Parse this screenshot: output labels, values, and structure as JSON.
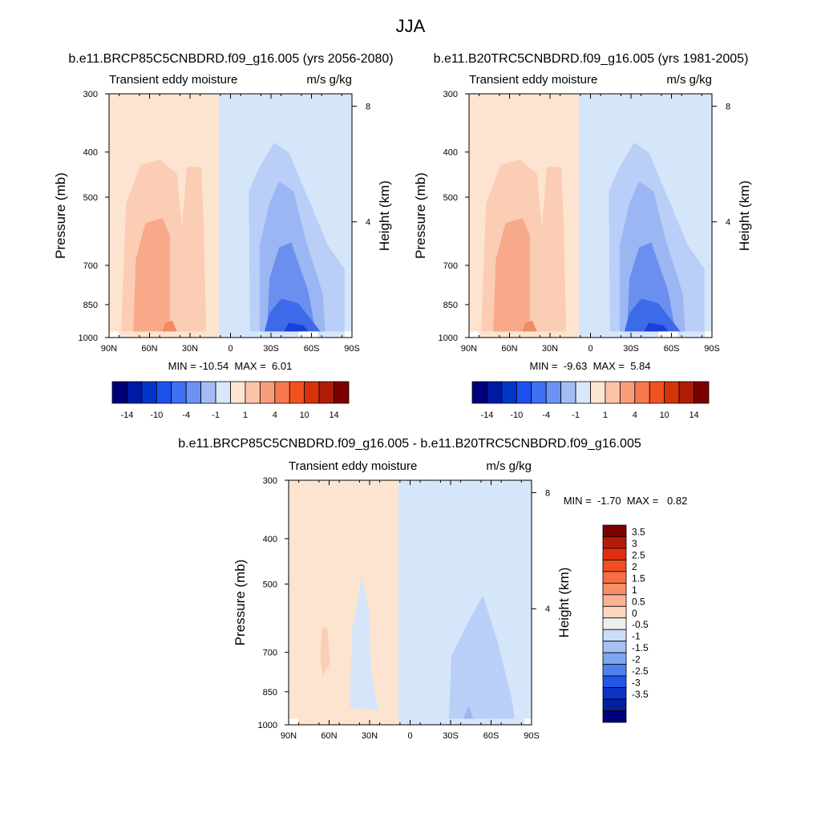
{
  "figure": {
    "title": "JJA"
  },
  "colors": {
    "pos": [
      "#fde4d0",
      "#fbcdb4",
      "#f7a98a",
      "#f28a64"
    ],
    "neg": [
      "#d6e6fa",
      "#b9cff7",
      "#9bb6f3",
      "#6a8fef",
      "#3d6ae8",
      "#1a3fd6"
    ]
  },
  "chart_data": [
    {
      "id": "future",
      "type": "contour",
      "title": "b.e11.BRCP85C5CNBDRD.f09_g16.005 (yrs 2056-2080)",
      "left_label": "Transient eddy moisture",
      "right_label": "m/s g/kg",
      "xlabel": "",
      "ylabel": "Pressure (mb)",
      "y2label": "Height (km)",
      "x_ticks": [
        "90N",
        "60N",
        "30N",
        "0",
        "30S",
        "60S",
        "90S"
      ],
      "x_range": [
        90,
        -90
      ],
      "y_ticks": [
        300,
        400,
        500,
        700,
        850,
        1000
      ],
      "y_range": [
        300,
        1000
      ],
      "y_scale": "log",
      "y2_ticks": [
        "8",
        "4"
      ],
      "stats": "MIN = -10.54  MAX =  6.01",
      "min": -10.54,
      "max": 6.01,
      "colorbar": {
        "orientation": "horizontal",
        "labels": [
          "-14",
          "-10",
          "-4",
          "-1",
          "1",
          "4",
          "10",
          "14"
        ],
        "colors": [
          "#00007d",
          "#0019a3",
          "#0036c7",
          "#1d52ef",
          "#4170f4",
          "#6b93f5",
          "#a3bdf4",
          "#d9e7fb",
          "#fde5d2",
          "#fbc4a7",
          "#f99d78",
          "#f6784e",
          "#f2521f",
          "#d6320c",
          "#ae1c08",
          "#7d0000"
        ]
      }
    },
    {
      "id": "historical",
      "type": "contour",
      "title": "b.e11.B20TRC5CNBDRD.f09_g16.005 (yrs 1981-2005)",
      "left_label": "Transient eddy moisture",
      "right_label": "m/s g/kg",
      "xlabel": "",
      "ylabel": "Pressure (mb)",
      "y2label": "Height (km)",
      "x_ticks": [
        "90N",
        "60N",
        "30N",
        "0",
        "30S",
        "60S",
        "90S"
      ],
      "x_range": [
        90,
        -90
      ],
      "y_ticks": [
        300,
        400,
        500,
        700,
        850,
        1000
      ],
      "y_range": [
        300,
        1000
      ],
      "y_scale": "log",
      "y2_ticks": [
        "8",
        "4"
      ],
      "stats": "MIN =  -9.63  MAX =  5.84",
      "min": -9.63,
      "max": 5.84,
      "colorbar": {
        "orientation": "horizontal",
        "labels": [
          "-14",
          "-10",
          "-4",
          "-1",
          "1",
          "4",
          "10",
          "14"
        ],
        "colors": [
          "#00007d",
          "#0019a3",
          "#0036c7",
          "#1d52ef",
          "#4170f4",
          "#6b93f5",
          "#a3bdf4",
          "#d9e7fb",
          "#fde5d2",
          "#fbc4a7",
          "#f99d78",
          "#f6784e",
          "#f2521f",
          "#d6320c",
          "#ae1c08",
          "#7d0000"
        ]
      }
    },
    {
      "id": "difference",
      "type": "contour",
      "title": "b.e11.BRCP85C5CNBDRD.f09_g16.005 - b.e11.B20TRC5CNBDRD.f09_g16.005",
      "left_label": "Transient eddy moisture",
      "right_label": "m/s g/kg",
      "xlabel": "",
      "ylabel": "Pressure (mb)",
      "y2label": "Height (km)",
      "x_ticks": [
        "90N",
        "60N",
        "30N",
        "0",
        "30S",
        "60S",
        "90S"
      ],
      "x_range": [
        90,
        -90
      ],
      "y_ticks": [
        300,
        400,
        500,
        700,
        850,
        1000
      ],
      "y_range": [
        300,
        1000
      ],
      "y_scale": "log",
      "y2_ticks": [
        "8",
        "4"
      ],
      "stats": "MIN =  -1.70  MAX =   0.82",
      "min": -1.7,
      "max": 0.82,
      "colorbar": {
        "orientation": "vertical",
        "labels": [
          "3.5",
          "3",
          "2.5",
          "2",
          "1.5",
          "1",
          "0.5",
          "0",
          "-0.5",
          "-1",
          "-1.5",
          "-2",
          "-2.5",
          "-3",
          "-3.5"
        ],
        "colors": [
          "#7d0000",
          "#b21c08",
          "#de3010",
          "#f34c1e",
          "#f76e45",
          "#f98e6a",
          "#fbb294",
          "#fdd6c0",
          "#f0efef",
          "#cbdcf6",
          "#a4c1f3",
          "#7ea5f2",
          "#4f82f0",
          "#2158ea",
          "#0c33c4",
          "#05209c",
          "#00007d"
        ]
      }
    }
  ]
}
